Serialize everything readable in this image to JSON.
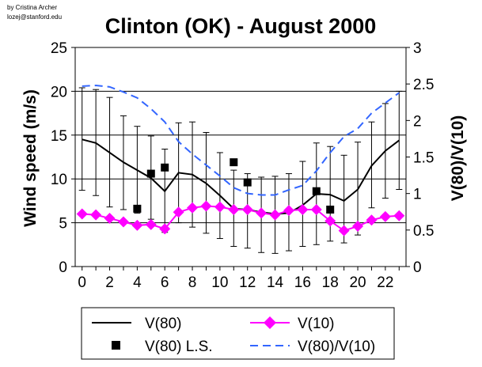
{
  "credit": {
    "line1": "by Cristina Archer",
    "line2": "lozej@stanford.edu"
  },
  "chart_data": {
    "type": "line",
    "title": "Clinton (OK) - August 2000",
    "xlabel": "",
    "ylabel": "Wind speed (m/s)",
    "y2label": "V(80)/V(10)",
    "x": [
      0,
      1,
      2,
      3,
      4,
      5,
      6,
      7,
      8,
      9,
      10,
      11,
      12,
      13,
      14,
      15,
      16,
      17,
      18,
      19,
      20,
      21,
      22,
      23
    ],
    "xlim": [
      -0.5,
      23.5
    ],
    "x_ticks": [
      0,
      2,
      4,
      6,
      8,
      10,
      12,
      14,
      16,
      18,
      20,
      22
    ],
    "x_tick_labels": [
      "0",
      "2",
      "4",
      "6",
      "8",
      "10",
      "12",
      "14",
      "16",
      "18",
      "20",
      "22"
    ],
    "ylim": [
      0,
      25
    ],
    "y_ticks": [
      0,
      5,
      10,
      15,
      20,
      25
    ],
    "y_tick_labels": [
      "0",
      "5",
      "10",
      "15",
      "20",
      "25"
    ],
    "y2lim": [
      0,
      3
    ],
    "y2_ticks": [
      0,
      0.5,
      1,
      1.5,
      2,
      2.5,
      3
    ],
    "y2_tick_labels": [
      "0",
      "0.5",
      "1",
      "1.5",
      "2",
      "2.5",
      "3"
    ],
    "grid": "horizontal",
    "legend_position": "bottom",
    "series": [
      {
        "name": "V(80)",
        "axis": "left",
        "style": "solid",
        "color": "#000000",
        "values": [
          14.5,
          14.1,
          13.0,
          11.9,
          11.0,
          10.1,
          8.6,
          10.7,
          10.5,
          9.5,
          8.1,
          6.6,
          6.5,
          6.2,
          6.0,
          6.1,
          7.0,
          8.3,
          8.2,
          7.5,
          8.8,
          11.5,
          13.2,
          14.4
        ],
        "err_hi": [
          20.4,
          20.2,
          19.3,
          17.2,
          16.0,
          14.9,
          13.4,
          16.4,
          16.5,
          15.3,
          13.0,
          11.0,
          10.6,
          10.2,
          10.3,
          10.6,
          12.0,
          14.1,
          13.7,
          12.7,
          14.2,
          16.5,
          18.6,
          20.0
        ],
        "err_lo": [
          8.7,
          8.1,
          6.8,
          6.5,
          6.1,
          5.4,
          3.9,
          5.0,
          4.5,
          3.8,
          3.2,
          2.3,
          2.1,
          1.6,
          1.5,
          1.8,
          2.3,
          2.5,
          2.9,
          2.7,
          3.6,
          6.7,
          7.8,
          8.8
        ]
      },
      {
        "name": "V(10)",
        "axis": "left",
        "style": "diamond",
        "color": "#ff00ff",
        "values": [
          6.0,
          5.9,
          5.5,
          5.1,
          4.7,
          4.8,
          4.3,
          6.2,
          6.7,
          6.9,
          6.8,
          6.5,
          6.5,
          6.1,
          5.9,
          6.4,
          6.5,
          6.5,
          5.2,
          4.1,
          4.6,
          5.3,
          5.7,
          5.8
        ]
      },
      {
        "name": "V(80) L.S.",
        "axis": "left",
        "style": "square",
        "color": "#000000",
        "points": [
          {
            "x": 4,
            "y": 6.6
          },
          {
            "x": 5,
            "y": 10.6
          },
          {
            "x": 6,
            "y": 11.3
          },
          {
            "x": 11,
            "y": 11.9
          },
          {
            "x": 12,
            "y": 9.6
          },
          {
            "x": 17,
            "y": 8.6
          },
          {
            "x": 18,
            "y": 6.5
          }
        ]
      },
      {
        "name": "V(80)/V(10)",
        "axis": "right",
        "style": "dashed",
        "color": "#3366ff",
        "values": [
          2.47,
          2.48,
          2.46,
          2.39,
          2.31,
          2.16,
          1.98,
          1.71,
          1.54,
          1.39,
          1.24,
          1.08,
          1.0,
          0.98,
          0.98,
          1.05,
          1.11,
          1.31,
          1.56,
          1.78,
          1.89,
          2.1,
          2.24,
          2.38
        ]
      }
    ]
  }
}
